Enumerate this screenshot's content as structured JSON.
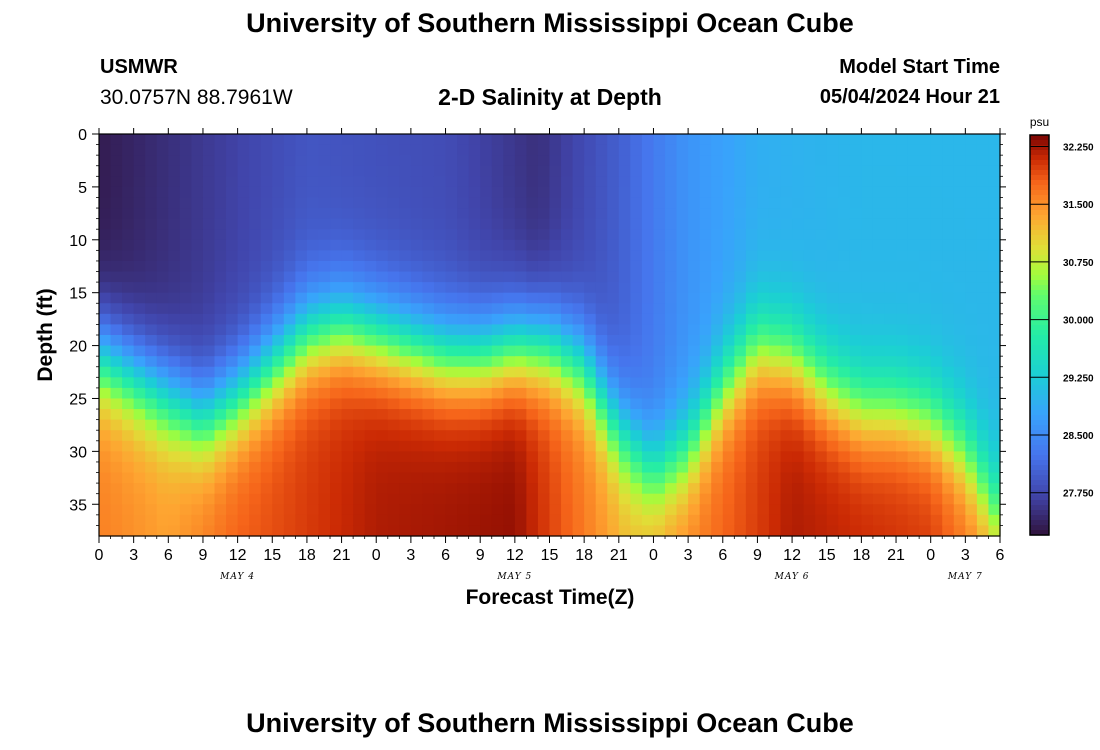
{
  "header": {
    "title": "University of Southern Mississippi Ocean Cube",
    "footer_title": "University of Southern Mississippi Ocean Cube",
    "station": "USMWR",
    "coords": "30.0757N  88.7961W",
    "subtitle": "2-D Salinity at Depth",
    "model_label": "Model Start Time",
    "model_time": "05/04/2024 Hour 21"
  },
  "chart_data": {
    "type": "heatmap",
    "xlabel": "Forecast Time(Z)",
    "ylabel": "Depth (ft)",
    "x_tick_labels": [
      "0",
      "3",
      "6",
      "9",
      "12",
      "15",
      "18",
      "21",
      "0",
      "3",
      "6",
      "9",
      "12",
      "15",
      "18",
      "21",
      "0",
      "3",
      "6",
      "9",
      "12",
      "15",
      "18",
      "21",
      "0",
      "3",
      "6"
    ],
    "x_range_hours": [
      0,
      78
    ],
    "day_labels": [
      {
        "label": "MAY 4",
        "hour": 12
      },
      {
        "label": "MAY 5",
        "hour": 36
      },
      {
        "label": "MAY 6",
        "hour": 60
      },
      {
        "label": "MAY 7",
        "hour": 75
      }
    ],
    "y_tick_labels": [
      "0",
      "5",
      "10",
      "15",
      "20",
      "25",
      "30",
      "35"
    ],
    "y_ticks": [
      0,
      5,
      10,
      15,
      20,
      25,
      30,
      35
    ],
    "ylim": [
      0,
      38
    ],
    "colorbar": {
      "unit": "psu",
      "min": 27.2,
      "max": 32.4,
      "tick_labels": [
        "32.250",
        "31.500",
        "30.750",
        "30.000",
        "29.250",
        "28.500",
        "27.750"
      ],
      "tick_values": [
        32.25,
        31.5,
        30.75,
        30.0,
        29.25,
        28.5,
        27.75
      ]
    },
    "halocline_depth_ft": [
      {
        "hour": 0,
        "depth": 21
      },
      {
        "hour": 6,
        "depth": 25
      },
      {
        "hour": 9,
        "depth": 27
      },
      {
        "hour": 12,
        "depth": 25
      },
      {
        "hour": 15,
        "depth": 22
      },
      {
        "hour": 18,
        "depth": 19
      },
      {
        "hour": 21,
        "depth": 18
      },
      {
        "hour": 24,
        "depth": 19
      },
      {
        "hour": 27,
        "depth": 20
      },
      {
        "hour": 30,
        "depth": 21
      },
      {
        "hour": 33,
        "depth": 21
      },
      {
        "hour": 36,
        "depth": 20
      },
      {
        "hour": 39,
        "depth": 20
      },
      {
        "hour": 42,
        "depth": 22
      },
      {
        "hour": 45,
        "depth": 28
      },
      {
        "hour": 48,
        "depth": 32
      },
      {
        "hour": 51,
        "depth": 30
      },
      {
        "hour": 54,
        "depth": 24
      },
      {
        "hour": 57,
        "depth": 20
      },
      {
        "hour": 60,
        "depth": 21
      },
      {
        "hour": 63,
        "depth": 24
      },
      {
        "hour": 66,
        "depth": 26
      },
      {
        "hour": 69,
        "depth": 26
      },
      {
        "hour": 72,
        "depth": 27
      },
      {
        "hour": 75,
        "depth": 30
      },
      {
        "hour": 78,
        "depth": 36
      }
    ],
    "surface_salinity_psu": [
      {
        "hour": 0,
        "value": 27.3
      },
      {
        "hour": 9,
        "value": 27.6
      },
      {
        "hour": 18,
        "value": 27.9
      },
      {
        "hour": 30,
        "value": 27.8
      },
      {
        "hour": 38,
        "value": 27.5
      },
      {
        "hour": 45,
        "value": 28.0
      },
      {
        "hour": 51,
        "value": 28.6
      },
      {
        "hour": 57,
        "value": 28.9
      },
      {
        "hour": 66,
        "value": 29.0
      },
      {
        "hour": 78,
        "value": 29.0
      }
    ],
    "bottom_salinity_psu": [
      {
        "hour": 0,
        "value": 31.6
      },
      {
        "hour": 6,
        "value": 31.4
      },
      {
        "hour": 12,
        "value": 31.8
      },
      {
        "hour": 24,
        "value": 32.2
      },
      {
        "hour": 36,
        "value": 32.3
      },
      {
        "hour": 46,
        "value": 31.2
      },
      {
        "hour": 50,
        "value": 31.5
      },
      {
        "hour": 60,
        "value": 32.2
      },
      {
        "hour": 72,
        "value": 32.0
      },
      {
        "hour": 78,
        "value": 31.4
      }
    ]
  }
}
